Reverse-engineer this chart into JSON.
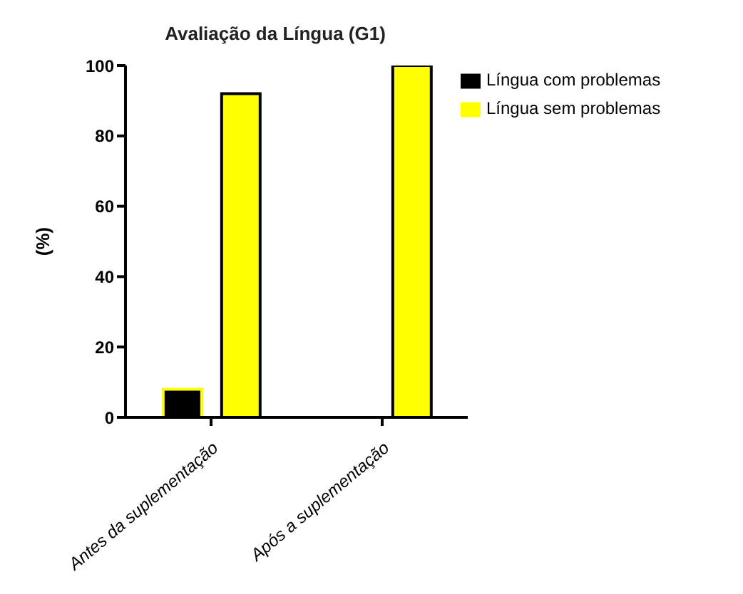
{
  "chart_data": {
    "type": "bar",
    "title": "Avaliação da Língua (G1)",
    "ylabel": "(%)",
    "categories": [
      "Antes da suplementação",
      "Após a suplementação"
    ],
    "series": [
      {
        "name": "Língua com problemas",
        "color": "#000000",
        "values": [
          8,
          0
        ]
      },
      {
        "name": "Língua sem problemas",
        "color": "#ffff00",
        "values": [
          92,
          100
        ]
      }
    ],
    "ylim": [
      0,
      100
    ],
    "yticks": [
      0,
      20,
      40,
      60,
      80,
      100
    ],
    "grid": false,
    "legend": "top right"
  }
}
